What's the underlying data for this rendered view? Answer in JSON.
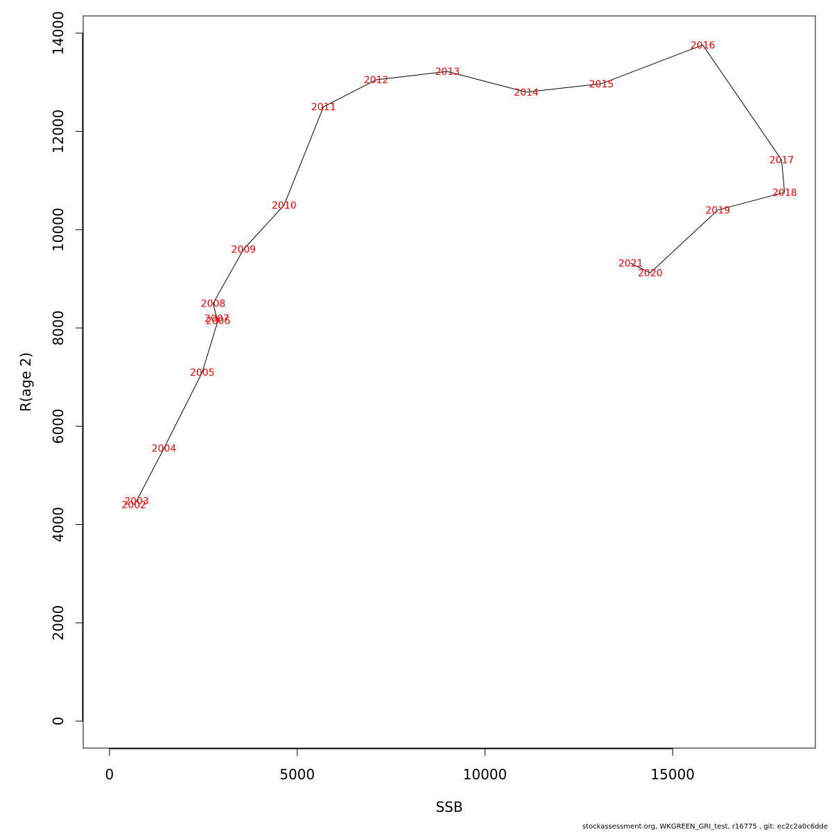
{
  "chart_data": {
    "type": "line",
    "xlabel": "SSB",
    "ylabel": "R(age 2)",
    "xlim": [
      -700,
      18800
    ],
    "ylim": [
      -550,
      14350
    ],
    "x_ticks": [
      0,
      5000,
      10000,
      15000
    ],
    "y_ticks": [
      0,
      2000,
      4000,
      6000,
      8000,
      10000,
      12000,
      14000
    ],
    "grid": false,
    "line_color": "#000000",
    "label_color": "#ff0000",
    "points": [
      {
        "year": "2002",
        "x": 650,
        "y": 4400
      },
      {
        "year": "2003",
        "x": 720,
        "y": 4480
      },
      {
        "year": "2004",
        "x": 1450,
        "y": 5550
      },
      {
        "year": "2005",
        "x": 2470,
        "y": 7100
      },
      {
        "year": "2006",
        "x": 2890,
        "y": 8150
      },
      {
        "year": "2007",
        "x": 2860,
        "y": 8200
      },
      {
        "year": "2008",
        "x": 2760,
        "y": 8500
      },
      {
        "year": "2009",
        "x": 3570,
        "y": 9600
      },
      {
        "year": "2010",
        "x": 4650,
        "y": 10500
      },
      {
        "year": "2011",
        "x": 5700,
        "y": 12500
      },
      {
        "year": "2012",
        "x": 7100,
        "y": 13050
      },
      {
        "year": "2013",
        "x": 9000,
        "y": 13220
      },
      {
        "year": "2014",
        "x": 11100,
        "y": 12800
      },
      {
        "year": "2015",
        "x": 13100,
        "y": 12970
      },
      {
        "year": "2016",
        "x": 15800,
        "y": 13760
      },
      {
        "year": "2017",
        "x": 17900,
        "y": 11420
      },
      {
        "year": "2018",
        "x": 17980,
        "y": 10760
      },
      {
        "year": "2019",
        "x": 16200,
        "y": 10400
      },
      {
        "year": "2020",
        "x": 14400,
        "y": 9120
      },
      {
        "year": "2021",
        "x": 13880,
        "y": 9320
      }
    ]
  },
  "footer": {
    "text": "stockassessment.org, WKGREEN_GRI_test, r16775 , git: ec2c2a0c6dde"
  }
}
